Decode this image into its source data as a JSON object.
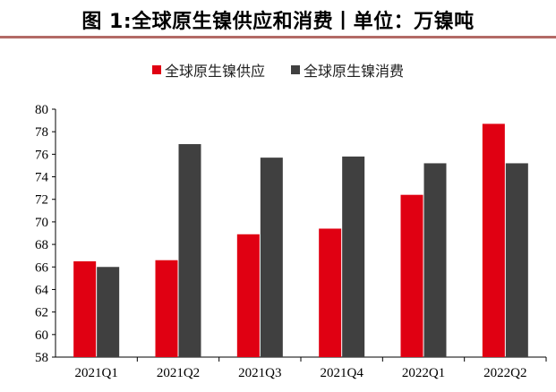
{
  "title": "图 1:全球原生镍供应和消费丨单位：万镍吨",
  "chart_data": {
    "type": "bar",
    "categories": [
      "2021Q1",
      "2021Q2",
      "2021Q3",
      "2021Q4",
      "2022Q1",
      "2022Q2"
    ],
    "series": [
      {
        "name": "全球原生镍供应",
        "color": "#e00012",
        "values": [
          66.5,
          66.6,
          68.9,
          69.4,
          72.4,
          78.7
        ]
      },
      {
        "name": "全球原生镍消费",
        "color": "#404040",
        "values": [
          66.0,
          76.9,
          75.7,
          75.8,
          75.2,
          75.2
        ]
      }
    ],
    "ylim": [
      58,
      80
    ],
    "yticks": [
      58,
      60,
      62,
      64,
      66,
      68,
      70,
      72,
      74,
      76,
      78,
      80
    ],
    "legend": "top",
    "grid": false
  }
}
